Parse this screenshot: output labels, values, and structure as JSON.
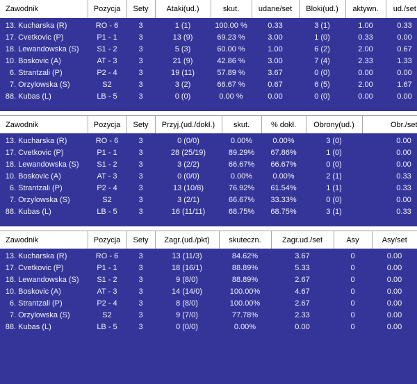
{
  "colors": {
    "table_bg": "#353599",
    "header_bg": "#ffffff",
    "header_text": "#000000",
    "row_text": "#f2f2ff",
    "divider": "#a8a8a8",
    "gap_bg": "#ffffff"
  },
  "sections": [
    {
      "title": "attack-and-block-stats",
      "columns": [
        "Zawodnik",
        "Pozycja",
        "Sety",
        "Ataki(ud.)",
        "skut.",
        "udane/set",
        "Bloki(ud.)",
        "aktywn.",
        "ud./set"
      ],
      "rows": [
        {
          "num": "13",
          "rest": ". Kucharska (R)",
          "cells": [
            "RO - 6",
            "3",
            "1 (1)",
            "100.00 %",
            "0.33",
            "3 (1)",
            "1.00",
            "0.33"
          ]
        },
        {
          "num": "17",
          "rest": ". Cvetkovic (P)",
          "cells": [
            "P1 - 1",
            "3",
            "13 (9)",
            "69.23 %",
            "3.00",
            "1 (0)",
            "0.33",
            "0.00"
          ]
        },
        {
          "num": "18",
          "rest": ". Lewandowska (S)",
          "cells": [
            "S1 - 2",
            "3",
            "5 (3)",
            "60.00 %",
            "1.00",
            "6 (2)",
            "2.00",
            "0.67"
          ]
        },
        {
          "num": "10",
          "rest": ". Boskovic (A)",
          "cells": [
            "AT - 3",
            "3",
            "21 (9)",
            "42.86 %",
            "3.00",
            "7 (4)",
            "2.33",
            "1.33"
          ]
        },
        {
          "num": "6",
          "rest": ". Strantzali (P)",
          "cells": [
            "P2 - 4",
            "3",
            "19 (11)",
            "57.89 %",
            "3.67",
            "0 (0)",
            "0.00",
            "0.00"
          ]
        },
        {
          "num": "7",
          "rest": ". Orzylowska (S)",
          "cells": [
            "S2",
            "3",
            "3 (2)",
            "66.67 %",
            "0.67",
            "6 (5)",
            "2.00",
            "1.67"
          ]
        },
        {
          "num": "88",
          "rest": ". Kubas (L)",
          "cells": [
            "LB - 5",
            "3",
            "0 (0)",
            "0.00 %",
            "0.00",
            "0 (0)",
            "0.00",
            "0.00"
          ]
        }
      ]
    },
    {
      "title": "reception-and-defense-stats",
      "columns": [
        "Zawodnik",
        "Pozycja",
        "Sety",
        "Przyj.(ud./dokł.)",
        "skut.",
        "% dokł.",
        "Obrony(ud.)",
        "Obr./set"
      ],
      "rows": [
        {
          "num": "13",
          "rest": ". Kucharska (R)",
          "cells": [
            "RO - 6",
            "3",
            "0 (0/0)",
            "0.00%",
            "0.00%",
            "3 (0)",
            "0.00"
          ]
        },
        {
          "num": "17",
          "rest": ". Cvetkovic (P)",
          "cells": [
            "P1 - 1",
            "3",
            "28 (25/19)",
            "89.29%",
            "67.86%",
            "1 (0)",
            "0.00"
          ]
        },
        {
          "num": "18",
          "rest": ". Lewandowska (S)",
          "cells": [
            "S1 - 2",
            "3",
            "3 (2/2)",
            "66.67%",
            "66.67%",
            "0 (0)",
            "0.00"
          ]
        },
        {
          "num": "10",
          "rest": ". Boskovic (A)",
          "cells": [
            "AT - 3",
            "3",
            "0 (0/0)",
            "0.00%",
            "0.00%",
            "2 (1)",
            "0.33"
          ]
        },
        {
          "num": "6",
          "rest": ". Strantzali (P)",
          "cells": [
            "P2 - 4",
            "3",
            "13 (10/8)",
            "76.92%",
            "61.54%",
            "1 (1)",
            "0.33"
          ]
        },
        {
          "num": "7",
          "rest": ". Orzylowska (S)",
          "cells": [
            "S2",
            "3",
            "3 (2/1)",
            "66.67%",
            "33.33%",
            "0 (0)",
            "0.00"
          ]
        },
        {
          "num": "88",
          "rest": ". Kubas (L)",
          "cells": [
            "LB - 5",
            "3",
            "16 (11/11)",
            "68.75%",
            "68.75%",
            "3 (1)",
            "0.33"
          ]
        }
      ]
    },
    {
      "title": "serve-stats",
      "columns": [
        "Zawodnik",
        "Pozycja",
        "Sety",
        "Zagr.(ud./pkt)",
        "skuteczn.",
        "Zagr.ud./set",
        "Asy",
        "Asy/set"
      ],
      "rows": [
        {
          "num": "13",
          "rest": ". Kucharska (R)",
          "cells": [
            "RO - 6",
            "3",
            "13 (11/3)",
            "84.62%",
            "3.67",
            "0",
            "0.00"
          ]
        },
        {
          "num": "17",
          "rest": ". Cvetkovic (P)",
          "cells": [
            "P1 - 1",
            "3",
            "18 (16/1)",
            "88.89%",
            "5.33",
            "0",
            "0.00"
          ]
        },
        {
          "num": "18",
          "rest": ". Lewandowska (S)",
          "cells": [
            "S1 - 2",
            "3",
            "9 (8/0)",
            "88.89%",
            "2.67",
            "0",
            "0.00"
          ]
        },
        {
          "num": "10",
          "rest": ". Boskovic (A)",
          "cells": [
            "AT - 3",
            "3",
            "14 (14/0)",
            "100.00%",
            "4.67",
            "0",
            "0.00"
          ]
        },
        {
          "num": "6",
          "rest": ". Strantzali (P)",
          "cells": [
            "P2 - 4",
            "3",
            "8 (8/0)",
            "100.00%",
            "2.67",
            "0",
            "0.00"
          ]
        },
        {
          "num": "7",
          "rest": ". Orzylowska (S)",
          "cells": [
            "S2",
            "3",
            "9 (7/0)",
            "77.78%",
            "2.33",
            "0",
            "0.00"
          ]
        },
        {
          "num": "88",
          "rest": ". Kubas (L)",
          "cells": [
            "LB - 5",
            "3",
            "0 (0/0)",
            "0.00%",
            "0.00",
            "0",
            "0.00"
          ]
        }
      ]
    }
  ]
}
